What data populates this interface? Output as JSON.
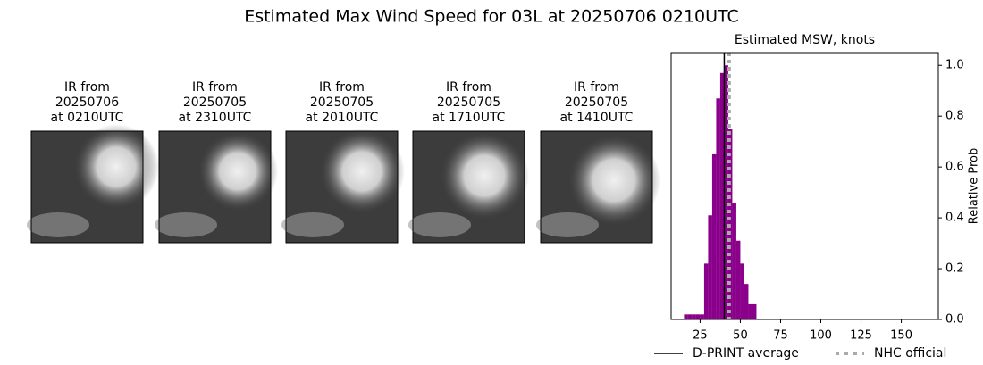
{
  "title": "Estimated Max Wind Speed for 03L at 20250706 0210UTC",
  "panels": [
    {
      "lines": [
        "IR from",
        "20250706",
        "at 0210UTC"
      ]
    },
    {
      "lines": [
        "IR from",
        "20250705",
        "at 2310UTC"
      ]
    },
    {
      "lines": [
        "IR from",
        "20250705",
        "at 2010UTC"
      ]
    },
    {
      "lines": [
        "IR from",
        "20250705",
        "at 1710UTC"
      ]
    },
    {
      "lines": [
        "IR from",
        "20250705",
        "at 1410UTC"
      ]
    }
  ],
  "chart_data": {
    "type": "histogram",
    "title": "Estimated MSW, knots",
    "y_label": "Relative Prob",
    "bins": [
      15,
      17.5,
      20,
      22.5,
      25,
      27.5,
      30,
      32.5,
      35,
      37.5,
      40,
      42.5,
      45,
      47.5,
      50,
      52.5,
      55,
      57.5,
      60
    ],
    "values": [
      0.02,
      0.02,
      0.02,
      0.02,
      0.02,
      0.22,
      0.41,
      0.65,
      0.87,
      0.97,
      1.0,
      0.75,
      0.46,
      0.31,
      0.22,
      0.14,
      0.06,
      0.06
    ],
    "color": "#8b008b",
    "xlim": [
      7,
      173
    ],
    "xticks": [
      25,
      50,
      75,
      100,
      125,
      150
    ],
    "ylim": [
      0,
      1.05
    ],
    "yticks": [
      {
        "value": 0,
        "label": "0.0"
      },
      0.2,
      0.4,
      0.6,
      0.8,
      {
        "value": 1,
        "label": "1.0"
      }
    ],
    "lines": [
      {
        "name": "D-PRINT average",
        "value": 40,
        "color": "#000000",
        "style": "solid"
      },
      {
        "name": "NHC official",
        "value": 43,
        "color": "#aaaaaa",
        "style": "dotted"
      }
    ]
  }
}
